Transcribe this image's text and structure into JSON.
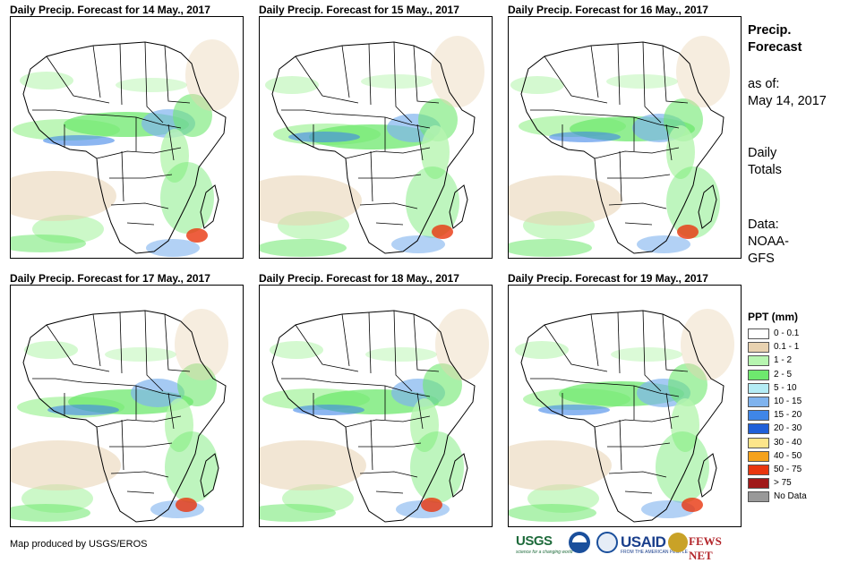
{
  "panels": [
    {
      "title": "Daily Precip. Forecast for 14 May., 2017"
    },
    {
      "title": "Daily Precip. Forecast for 15 May., 2017"
    },
    {
      "title": "Daily Precip. Forecast for 16 May., 2017"
    },
    {
      "title": "Daily Precip. Forecast for 17 May., 2017"
    },
    {
      "title": "Daily Precip. Forecast for 18 May., 2017"
    },
    {
      "title": "Daily Precip. Forecast for 19 May., 2017"
    }
  ],
  "sidebar": {
    "title_line1": "Precip.",
    "title_line2": "Forecast",
    "asof_label": "as of:",
    "asof_date": "May 14, 2017",
    "daily_line1": "Daily",
    "daily_line2": "Totals",
    "data_line1": "Data:",
    "data_line2": "NOAA-",
    "data_line3": "GFS"
  },
  "legend": {
    "title": "PPT (mm)",
    "items": [
      {
        "label": "0 - 0.1",
        "color": "#ffffff"
      },
      {
        "label": "0.1 - 1",
        "color": "#e8d2b0"
      },
      {
        "label": "1 - 2",
        "color": "#b7f5b0"
      },
      {
        "label": "2 - 5",
        "color": "#6ee86e"
      },
      {
        "label": "5 - 10",
        "color": "#b4ecf5"
      },
      {
        "label": "10 - 15",
        "color": "#7fb3ee"
      },
      {
        "label": "15 - 20",
        "color": "#3f86e8"
      },
      {
        "label": "20 - 30",
        "color": "#1f5fd8"
      },
      {
        "label": "30 - 40",
        "color": "#fde58a"
      },
      {
        "label": "40 - 50",
        "color": "#f5a21b"
      },
      {
        "label": "50 - 75",
        "color": "#e8360e"
      },
      {
        "label": "> 75",
        "color": "#a01818"
      },
      {
        "label": "No Data",
        "color": "#999999"
      }
    ]
  },
  "credit": "Map produced by USGS/EROS",
  "logos": {
    "usgs": "USGS",
    "usgs_tag": "science for a changing world",
    "usaid": "USAID",
    "usaid_tag": "FROM THE AMERICAN PEOPLE",
    "fews": "FEWS NET"
  }
}
